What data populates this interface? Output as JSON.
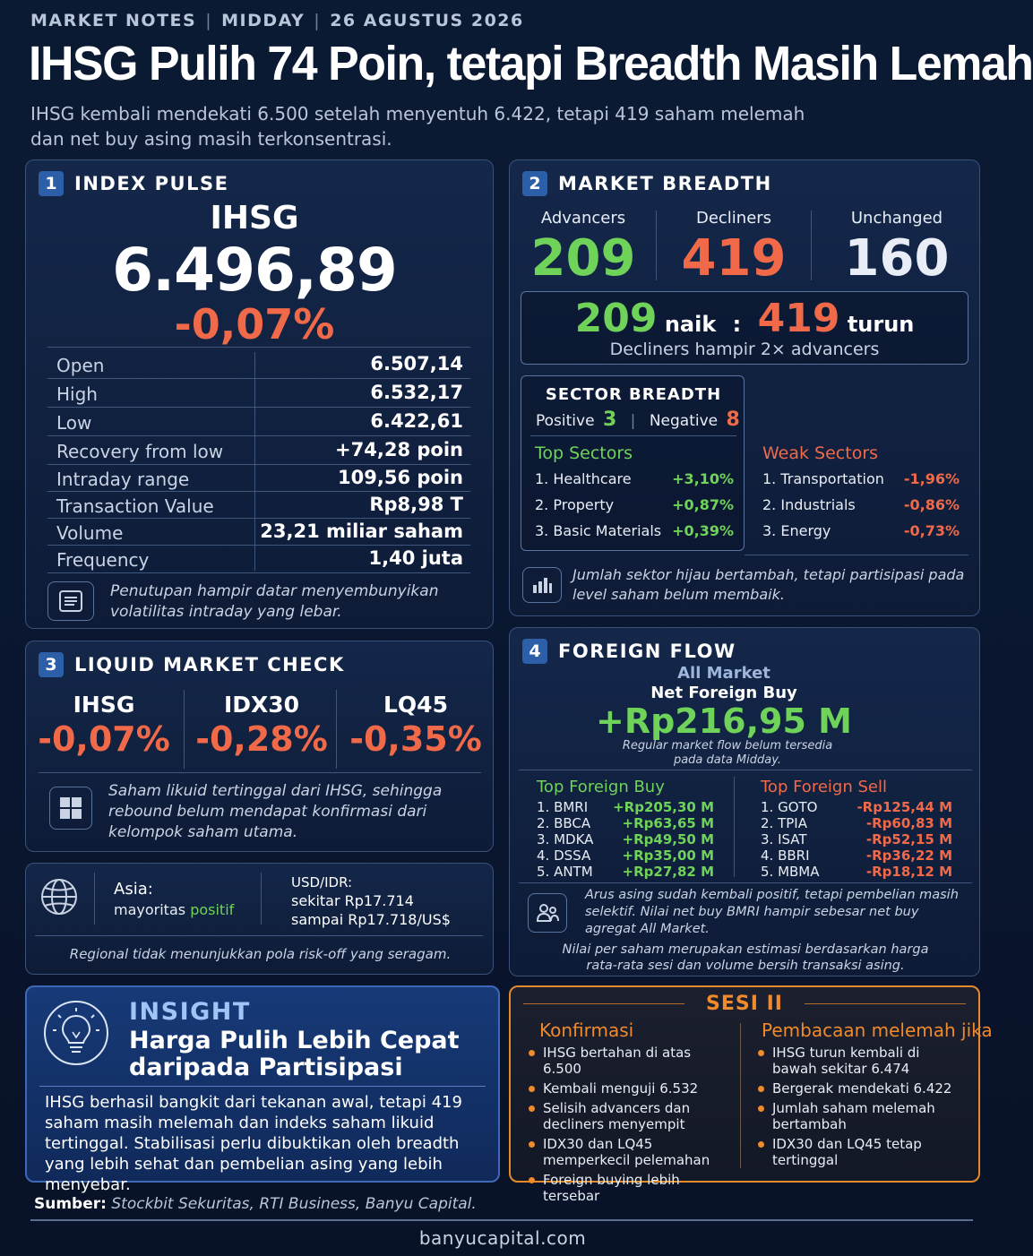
{
  "header": {
    "kicker": [
      "MARKET NOTES",
      "MIDDAY",
      "26 AGUSTUS 2026"
    ],
    "kicker_sep": "|",
    "headline": "IHSG Pulih 74 Poin, tetapi Breadth Masih Lemah",
    "subtitle": "IHSG kembali mendekati 6.500 setelah menyentuh 6.422, tetapi 419 saham melemah dan net buy asing masih terkonsentrasi."
  },
  "index_pulse": {
    "num": "1",
    "title": "INDEX PULSE",
    "index_name": "IHSG",
    "value": "6.496,89",
    "change": "-0,07%",
    "stats": [
      {
        "label": "Open",
        "value": "6.507,14"
      },
      {
        "label": "High",
        "value": "6.532,17"
      },
      {
        "label": "Low",
        "value": "6.422,61"
      },
      {
        "label": "Recovery from low",
        "value": "+74,28 poin"
      },
      {
        "label": "Intraday range",
        "value": "109,56 poin"
      },
      {
        "label": "Transaction Value",
        "value": "Rp8,98 T"
      },
      {
        "label": "Volume",
        "value": "23,21 miliar saham"
      },
      {
        "label": "Frequency",
        "value": "1,40 juta"
      }
    ],
    "note_icon": "document-lines-icon",
    "note": "Penutupan hampir datar menyembunyikan volatilitas intraday yang lebar."
  },
  "market_breadth": {
    "num": "2",
    "title": "MARKET BREADTH",
    "advancers_label": "Advancers",
    "advancers": "209",
    "decliners_label": "Decliners",
    "decliners": "419",
    "unchanged_label": "Unchanged",
    "unchanged": "160",
    "ratio_up": "209",
    "ratio_up_word": "naik",
    "ratio_colon": ":",
    "ratio_down": "419",
    "ratio_down_word": "turun",
    "ratio_note": "Decliners hampir 2× advancers",
    "sector_title": "SECTOR BREADTH",
    "positive_label": "Positive",
    "positive": "3",
    "negative_label": "Negative",
    "negative": "8",
    "top_sectors_title": "Top Sectors",
    "top_sectors": [
      {
        "name": "1. Healthcare",
        "pct": "+3,10%"
      },
      {
        "name": "2. Property",
        "pct": "+0,87%"
      },
      {
        "name": "3. Basic Materials",
        "pct": "+0,39%"
      }
    ],
    "weak_sectors_title": "Weak Sectors",
    "weak_sectors": [
      {
        "name": "1. Transportation",
        "pct": "-1,96%"
      },
      {
        "name": "2. Industrials",
        "pct": "-0,86%"
      },
      {
        "name": "3. Energy",
        "pct": "-0,73%"
      }
    ],
    "note_icon": "bar-chart-icon",
    "note": "Jumlah sektor hijau bertambah, tetapi partisipasi pada level saham belum membaik."
  },
  "liquid_market": {
    "num": "3",
    "title": "LIQUID MARKET CHECK",
    "items": [
      {
        "label": "IHSG",
        "value": "-0,07%"
      },
      {
        "label": "IDX30",
        "value": "-0,28%"
      },
      {
        "label": "LQ45",
        "value": "-0,35%"
      }
    ],
    "note_icon": "grid-icon",
    "note": "Saham likuid tertinggal dari IHSG, sehingga rebound belum mendapat konfirmasi dari kelompok saham utama."
  },
  "regional": {
    "icon": "globe-icon",
    "asia_label": "Asia:",
    "asia_text": "mayoritas",
    "asia_status": "positif",
    "fx_label": "USD/IDR:",
    "fx_line1": "sekitar Rp17.714",
    "fx_line2": "sampai Rp17.718/US$",
    "note": "Regional tidak menunjukkan pola risk-off yang seragam."
  },
  "foreign_flow": {
    "num": "4",
    "title": "FOREIGN FLOW",
    "scope": "All Market",
    "label": "Net Foreign Buy",
    "value": "+Rp216,95 M",
    "sub_note": "Regular market flow belum tersedia pada data Midday.",
    "buy_title": "Top Foreign Buy",
    "buy": [
      {
        "name": "1.  BMRI",
        "amt": "+Rp205,30 M"
      },
      {
        "name": "2.  BBCA",
        "amt": "+Rp63,65 M"
      },
      {
        "name": "3.  MDKA",
        "amt": "+Rp49,50 M"
      },
      {
        "name": "4.  DSSA",
        "amt": "+Rp35,00 M"
      },
      {
        "name": "5.  ANTM",
        "amt": "+Rp27,82 M"
      }
    ],
    "sell_title": "Top Foreign Sell",
    "sell": [
      {
        "name": "1.  GOTO",
        "amt": "-Rp125,44 M"
      },
      {
        "name": "2.  TPIA",
        "amt": "-Rp60,83 M"
      },
      {
        "name": "3.  ISAT",
        "amt": "-Rp52,15 M"
      },
      {
        "name": "4.  BBRI",
        "amt": "-Rp36,22 M"
      },
      {
        "name": "5.  MBMA",
        "amt": "-Rp18,12 M"
      }
    ],
    "note_icon": "users-icon",
    "note": "Arus asing sudah kembali positif, tetapi pembelian masih selektif. Nilai net buy BMRI hampir sebesar net buy agregat All Market.",
    "estimate_note": "Nilai per saham merupakan estimasi berdasarkan harga rata-rata sesi dan volume bersih transaksi asing."
  },
  "insight": {
    "icon": "lightbulb-icon",
    "label": "INSIGHT",
    "title_line1": "Harga Pulih Lebih Cepat",
    "title_line2": "daripada Partisipasi",
    "body": "IHSG berhasil bangkit dari tekanan awal, tetapi 419 saham masih melemah dan indeks saham likuid tertinggal. Stabilisasi perlu dibuktikan oleh breadth yang lebih sehat dan pembelian asing yang lebih menyebar."
  },
  "sesi": {
    "title": "SESI II",
    "confirm_title": "Konfirmasi",
    "confirm": [
      "IHSG bertahan di atas 6.500",
      "Kembali menguji 6.532",
      "Selisih advancers dan decliners menyempit",
      "IDX30 dan LQ45 memperkecil pelemahan",
      "Foreign buying lebih tersebar"
    ],
    "weak_title": "Pembacaan melemah jika",
    "weak": [
      "IHSG turun kembali di bawah sekitar 6.474",
      "Bergerak mendekati 6.422",
      "Jumlah saham melemah bertambah",
      "IDX30 dan LQ45 tetap tertinggal"
    ]
  },
  "footer": {
    "source_label": "Sumber:",
    "source_text": "Stockbit Sekuritas, RTI Business, Banyu Capital.",
    "url": "banyucapital.com"
  },
  "colors": {
    "positive": "#6fd35a",
    "negative": "#f06a4a",
    "accent": "#2d5ea8",
    "sesi_border": "#e58a2a"
  }
}
